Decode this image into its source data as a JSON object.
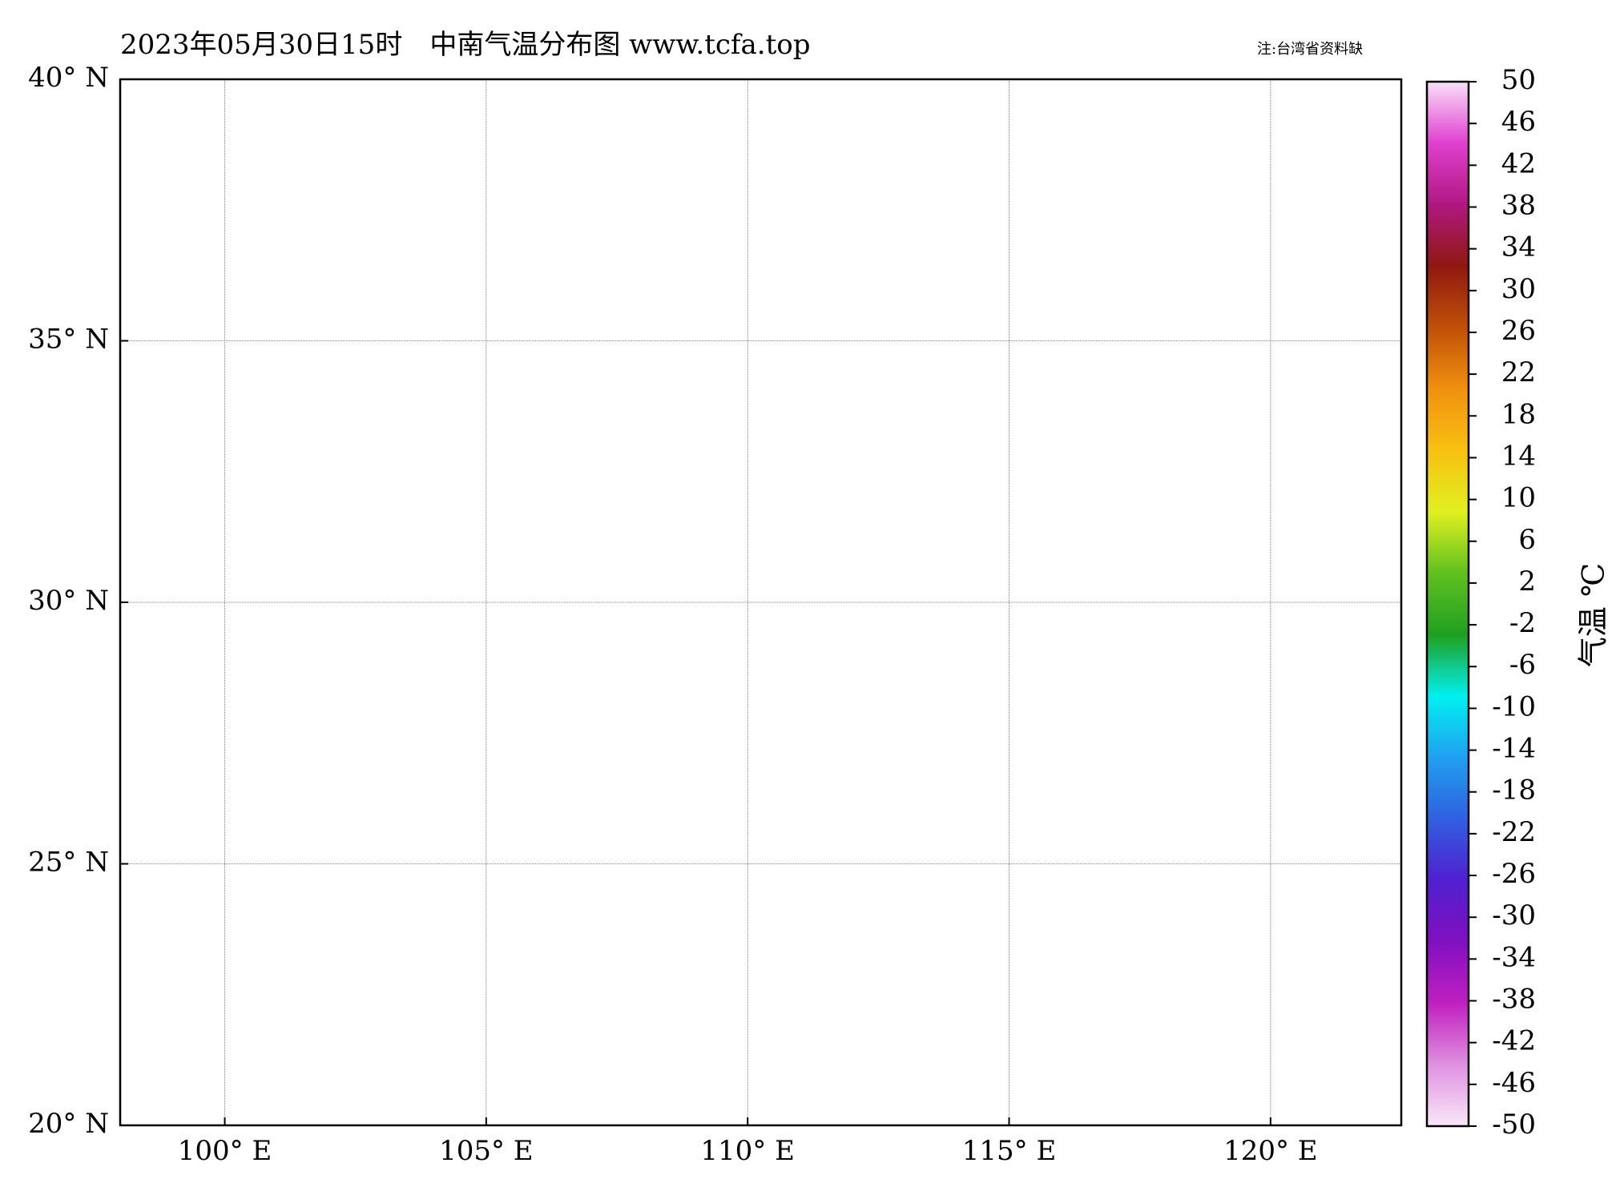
{
  "title": "2023年05月30日15时　中南气温分布图 www.tcfa.top",
  "note": "注:台湾省资料缺",
  "chart_data": {
    "type": "map",
    "xlim": [
      98,
      122.5
    ],
    "ylim": [
      20,
      40
    ],
    "xticks": [
      {
        "value": 100,
        "label": "100° E"
      },
      {
        "value": 105,
        "label": "105° E"
      },
      {
        "value": 110,
        "label": "110° E"
      },
      {
        "value": 115,
        "label": "115° E"
      },
      {
        "value": 120,
        "label": "120° E"
      }
    ],
    "yticks": [
      {
        "value": 20,
        "label": "20° N"
      },
      {
        "value": 25,
        "label": "25° N"
      },
      {
        "value": 30,
        "label": "30° N"
      },
      {
        "value": 35,
        "label": "35° N"
      },
      {
        "value": 40,
        "label": "40° N"
      }
    ],
    "grid": true,
    "colorbar": {
      "label": "气温 ℃",
      "lim": [
        -50,
        50
      ],
      "ticks": [
        50,
        46,
        42,
        38,
        34,
        30,
        26,
        22,
        18,
        14,
        10,
        6,
        2,
        -2,
        -6,
        -10,
        -14,
        -18,
        -22,
        -26,
        -30,
        -34,
        -38,
        -42,
        -46,
        -50
      ],
      "colors": [
        "#f8e8f8",
        "#e090e0",
        "#c020c0",
        "#8010c0",
        "#5020d0",
        "#3060e0",
        "#20a0f0",
        "#00f0f0",
        "#20a020",
        "#60c020",
        "#e0f020",
        "#f8c010",
        "#f09010",
        "#c05008",
        "#901810",
        "#b01880",
        "#e040d0",
        "#f8e0f8"
      ]
    }
  }
}
